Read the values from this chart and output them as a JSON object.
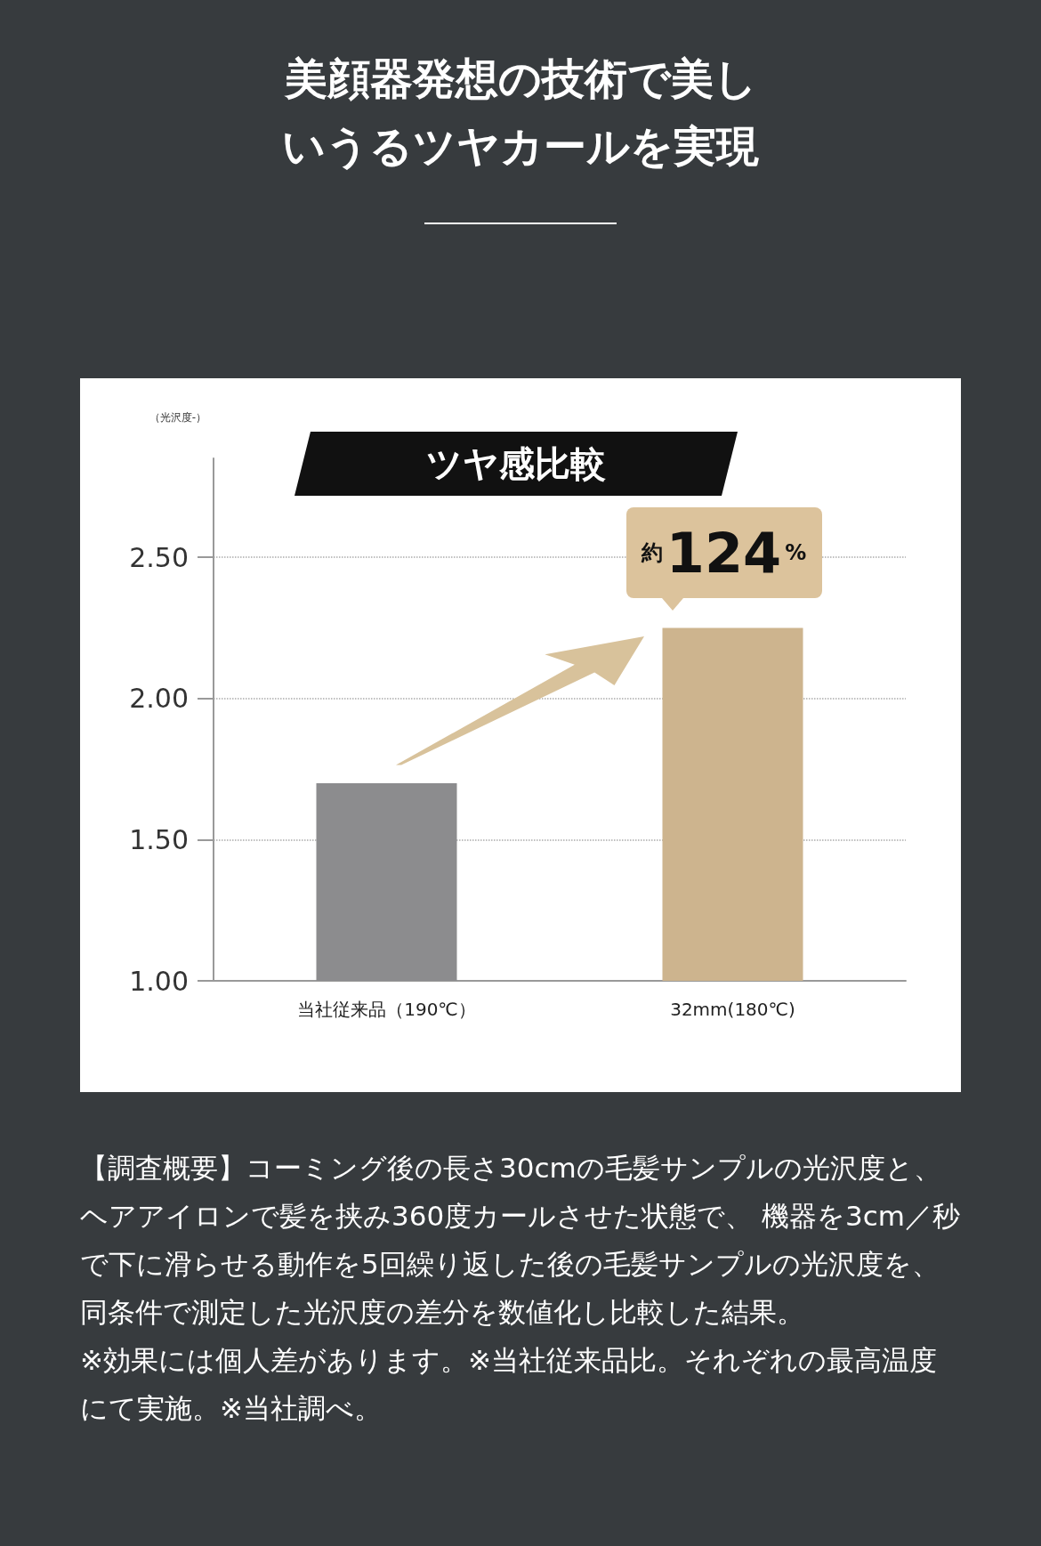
{
  "chart_data": {
    "type": "bar",
    "title": "美顔器発想の技術で美しいうるツヤカールを実現",
    "subtitle": "ツヤ感比較",
    "ylabel": "（光沢度-）",
    "categories": [
      "当社従来品（190℃）",
      "32mm(180℃)"
    ],
    "values": [
      1.7,
      2.25
    ],
    "colors": [
      "#8c8c8e",
      "#cdb48e"
    ],
    "ylim": [
      1,
      2.85
    ],
    "yticks": [
      {
        "value": 1,
        "label": "1.00"
      },
      {
        "value": 1.5,
        "label": "1.50"
      },
      {
        "value": 2,
        "label": "2.00"
      },
      {
        "value": 2.5,
        "label": "2.50"
      }
    ],
    "grid": "y",
    "annotations": [
      "約124%",
      "【調査概要】コーミング後の長さ30cmの毛髪サンプルの光沢度と、ヘアアイロンで髪を挟み360度カールさせた状態で、 機器を3cm／秒で下に滑らせる動作を5回繰り返した後の毛髪サンプルの光沢度を、同条件で測定した光沢度の差分を数値化し比較した結果。",
      "※効果には個人差があります。※当社従来品比。それぞれの最高温度にて実施。※当社調べ。"
    ]
  }
}
